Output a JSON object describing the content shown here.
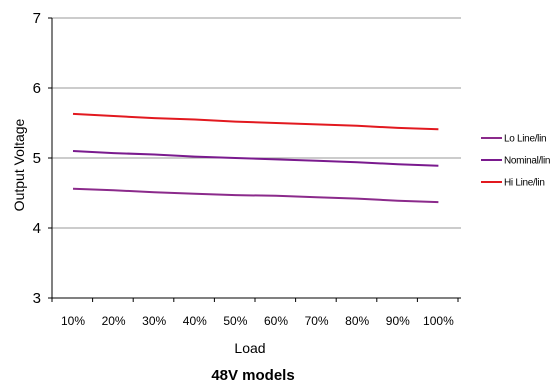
{
  "chart_data": {
    "type": "line",
    "title": "",
    "caption": "48V models",
    "xlabel": "Load",
    "ylabel": "Output Voltage",
    "categories": [
      "10%",
      "20%",
      "30%",
      "40%",
      "50%",
      "60%",
      "70%",
      "80%",
      "90%",
      "100%"
    ],
    "ylim": [
      3,
      7
    ],
    "yticks": [
      "3",
      "4",
      "5",
      "6",
      "7"
    ],
    "grid": "horizontal",
    "legend_position": "right",
    "series": [
      {
        "name": "Lo Line/lin",
        "color": "#8b2a8b",
        "values": [
          4.56,
          4.54,
          4.51,
          4.49,
          4.47,
          4.46,
          4.44,
          4.42,
          4.39,
          4.37
        ]
      },
      {
        "name": "Nominal/lin",
        "color": "#7a1a8e",
        "values": [
          5.1,
          5.07,
          5.05,
          5.02,
          5.0,
          4.98,
          4.96,
          4.94,
          4.91,
          4.89
        ]
      },
      {
        "name": "Hi Line/lin",
        "color": "#e2191f",
        "values": [
          5.63,
          5.6,
          5.57,
          5.55,
          5.52,
          5.5,
          5.48,
          5.46,
          5.43,
          5.41
        ]
      }
    ]
  }
}
